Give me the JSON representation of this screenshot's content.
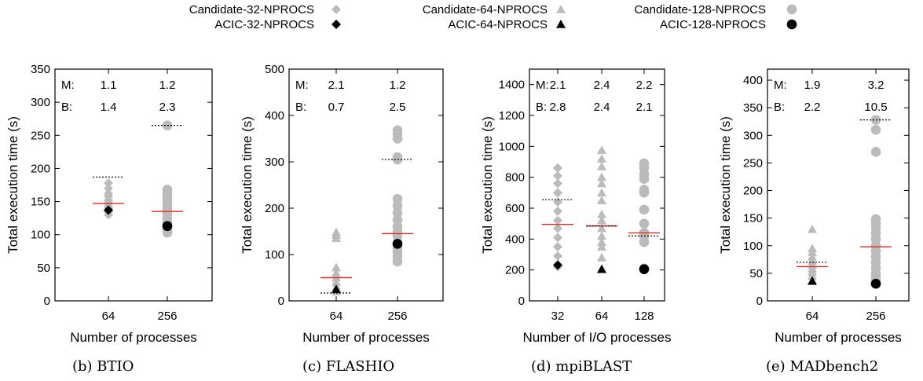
{
  "colors": {
    "candidate": "#bbbbbb",
    "acic": "#000000",
    "median": "#e8281e",
    "best": "#000000"
  },
  "legend": {
    "items": [
      {
        "label": "Candidate-32-NPROCS",
        "marker": "diamond",
        "color": "#bbbbbb"
      },
      {
        "label": "Candidate-64-NPROCS",
        "marker": "triangle",
        "color": "#bbbbbb"
      },
      {
        "label": "Candidate-128-NPROCS",
        "marker": "circle",
        "color": "#bbbbbb"
      },
      {
        "label": "ACIC-32-NPROCS",
        "marker": "diamond",
        "color": "#000000"
      },
      {
        "label": "ACIC-64-NPROCS",
        "marker": "triangle",
        "color": "#000000"
      },
      {
        "label": "ACIC-128-NPROCS",
        "marker": "circle",
        "color": "#000000"
      }
    ]
  },
  "chart_data": [
    {
      "type": "scatter",
      "caption": "(b) BTIO",
      "ylabel": "Total execution time (s)",
      "xlabel": "Number of processes",
      "ylim": [
        0,
        350
      ],
      "yticks": [
        0,
        50,
        100,
        150,
        200,
        250,
        300,
        350
      ],
      "categories": [
        "64",
        "256"
      ],
      "m_label": "M:",
      "b_label": "B:",
      "m_values": [
        "1.1",
        "1.2"
      ],
      "b_values": [
        "1.4",
        "2.3"
      ],
      "groups": [
        {
          "category": "64",
          "marker": "diamond",
          "candidates": [
            130,
            135,
            140,
            143,
            148,
            152,
            158,
            162,
            170,
            178
          ],
          "acic": 137,
          "median": 147,
          "best": 187
        },
        {
          "category": "256",
          "marker": "circle",
          "candidates": [
            103,
            108,
            112,
            118,
            125,
            132,
            138,
            145,
            150,
            155,
            160,
            165,
            168,
            265
          ],
          "acic": 113,
          "median": 135,
          "best": 265
        }
      ]
    },
    {
      "type": "scatter",
      "caption": "(c) FLASHIO",
      "ylabel": "Total execution time (s)",
      "xlabel": "Number of processes",
      "ylim": [
        0,
        500
      ],
      "yticks": [
        0,
        100,
        200,
        300,
        400,
        500
      ],
      "categories": [
        "64",
        "256"
      ],
      "m_label": "M:",
      "b_label": "B:",
      "m_values": [
        "2.1",
        "1.2"
      ],
      "b_values": [
        "0.7",
        "2.5"
      ],
      "groups": [
        {
          "category": "64",
          "marker": "triangle",
          "candidates": [
            20,
            30,
            40,
            50,
            60,
            72,
            135,
            142,
            148
          ],
          "acic": 25,
          "median": 50,
          "best": 17
        },
        {
          "category": "256",
          "marker": "circle",
          "candidates": [
            85,
            95,
            105,
            115,
            125,
            140,
            150,
            160,
            175,
            190,
            205,
            220,
            305,
            310,
            350,
            360,
            368
          ],
          "acic": 123,
          "median": 145,
          "best": 305
        }
      ]
    },
    {
      "type": "scatter",
      "caption": "(d) mpiBLAST",
      "ylabel": "Total execution time (s)",
      "xlabel": "Number of I/O processes",
      "ylim": [
        0,
        1500
      ],
      "yticks": [
        0,
        200,
        400,
        600,
        800,
        1000,
        1200,
        1400
      ],
      "categories": [
        "32",
        "64",
        "128"
      ],
      "m_label": "M:",
      "b_label": "B:",
      "m_values": [
        "2.1",
        "2.4",
        "2.2"
      ],
      "b_values": [
        "2.8",
        "2.4",
        "2.1"
      ],
      "groups": [
        {
          "category": "32",
          "marker": "diamond",
          "candidates": [
            220,
            290,
            350,
            410,
            470,
            520,
            580,
            640,
            700,
            760,
            810,
            860
          ],
          "acic": 232,
          "median": 495,
          "best": 655
        },
        {
          "category": "64",
          "marker": "triangle",
          "candidates": [
            280,
            350,
            380,
            420,
            470,
            520,
            560,
            650,
            700,
            760,
            800,
            870,
            920,
            975
          ],
          "acic": 205,
          "median": 485,
          "best": 485
        },
        {
          "category": "128",
          "marker": "circle",
          "candidates": [
            210,
            380,
            420,
            440,
            500,
            590,
            700,
            720,
            790,
            820,
            860,
            890
          ],
          "acic": 205,
          "median": 440,
          "best": 420
        }
      ]
    },
    {
      "type": "scatter",
      "caption": "(e) MADbench2",
      "ylabel": "Total execution time (s)",
      "xlabel": "Number of processes",
      "ylim": [
        0,
        420
      ],
      "yticks": [
        0,
        50,
        100,
        150,
        200,
        250,
        300,
        350,
        400
      ],
      "categories": [
        "64",
        "256"
      ],
      "m_label": "M:",
      "b_label": "B:",
      "m_values": [
        "1.9",
        "3.2"
      ],
      "b_values": [
        "2.2",
        "10.5"
      ],
      "groups": [
        {
          "category": "64",
          "marker": "triangle",
          "candidates": [
            45,
            52,
            58,
            65,
            72,
            80,
            88,
            95,
            130
          ],
          "acic": 36,
          "median": 62,
          "best": 70
        },
        {
          "category": "256",
          "marker": "circle",
          "candidates": [
            35,
            42,
            50,
            60,
            70,
            80,
            90,
            100,
            112,
            122,
            132,
            140,
            148,
            270,
            310,
            328
          ],
          "acic": 31,
          "median": 98,
          "best": 328
        }
      ]
    }
  ]
}
